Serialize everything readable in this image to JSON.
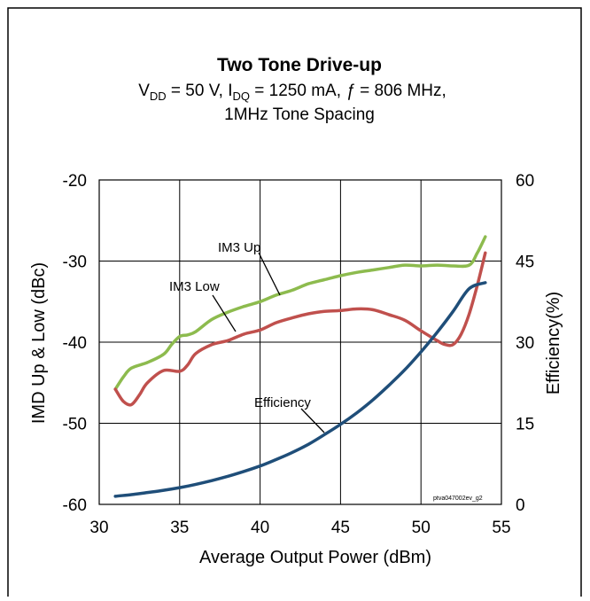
{
  "chart_data": {
    "type": "line",
    "title": "Two Tone  Drive-up",
    "subtitle_line1": {
      "v": "V",
      "v_sub": "DD",
      "mid1": " = 50 V, I",
      "i_sub": "DQ",
      "mid2": " = 1250 mA, ",
      "f": "ƒ",
      "end": " = 806 MHz,"
    },
    "subtitle_line2": "1MHz Tone Spacing",
    "xlabel": "Average Output Power (dBm)",
    "ylabel_left": "IMD  Up & Low (dBc)",
    "ylabel_right": "Efficiency(%)",
    "xlim": [
      30,
      55
    ],
    "ylim_left": [
      -60,
      -20
    ],
    "ylim_right": [
      0,
      60
    ],
    "x_ticks": [
      "30",
      "35",
      "40",
      "45",
      "50",
      "55"
    ],
    "y_ticks_left": [
      "-60",
      "-50",
      "-40",
      "-30",
      "-20"
    ],
    "y_ticks_right": [
      "0",
      "15",
      "30",
      "45",
      "60"
    ],
    "grid": true,
    "watermark": "ptva047002ev_g2",
    "colors": {
      "im3_up": "#8dbb4e",
      "im3_low": "#c0504d",
      "efficiency": "#1f4e79"
    },
    "series": [
      {
        "name": "IM3 Up",
        "axis": "left",
        "x": [
          31.0,
          31.5,
          32.0,
          33.0,
          34.0,
          34.5,
          35.0,
          35.5,
          36.0,
          37.0,
          38.0,
          39.0,
          40.0,
          41.0,
          42.0,
          43.0,
          44.0,
          45.0,
          46.0,
          47.0,
          48.0,
          49.0,
          50.0,
          51.0,
          52.0,
          53.0,
          53.5,
          54.0
        ],
        "values": [
          -45.8,
          -44.3,
          -43.2,
          -42.5,
          -41.5,
          -40.3,
          -39.3,
          -39.1,
          -38.7,
          -37.2,
          -36.3,
          -35.6,
          -35.0,
          -34.2,
          -33.6,
          -32.8,
          -32.3,
          -31.8,
          -31.4,
          -31.1,
          -30.8,
          -30.5,
          -30.6,
          -30.5,
          -30.6,
          -30.5,
          -29.0,
          -27.0
        ]
      },
      {
        "name": "IM3 Low",
        "axis": "left",
        "x": [
          31.0,
          31.5,
          32.0,
          32.5,
          33.0,
          34.0,
          35.0,
          35.5,
          36.0,
          37.0,
          38.0,
          39.0,
          40.0,
          41.0,
          42.0,
          43.0,
          44.0,
          45.0,
          46.0,
          47.0,
          48.0,
          49.0,
          50.0,
          51.0,
          51.5,
          52.0,
          52.5,
          53.0,
          53.5,
          54.0
        ],
        "values": [
          -45.8,
          -47.3,
          -47.7,
          -46.5,
          -45.0,
          -43.5,
          -43.6,
          -42.8,
          -41.4,
          -40.3,
          -39.8,
          -39.0,
          -38.5,
          -37.6,
          -37.0,
          -36.5,
          -36.2,
          -36.1,
          -35.9,
          -36.0,
          -36.6,
          -37.3,
          -38.6,
          -39.8,
          -40.3,
          -40.3,
          -39.0,
          -36.5,
          -33.0,
          -29.0
        ]
      },
      {
        "name": "Efficiency",
        "axis": "right",
        "x": [
          31,
          32,
          33,
          34,
          35,
          36,
          37,
          38,
          39,
          40,
          41,
          42,
          43,
          44,
          45,
          46,
          47,
          48,
          49,
          50,
          51,
          52,
          53,
          54
        ],
        "values": [
          1.5,
          1.8,
          2.2,
          2.6,
          3.1,
          3.7,
          4.4,
          5.2,
          6.1,
          7.1,
          8.3,
          9.6,
          11.1,
          12.9,
          14.8,
          16.9,
          19.3,
          22.0,
          24.9,
          28.2,
          31.8,
          35.7,
          39.9,
          41.0
        ]
      }
    ],
    "annotations": [
      "IM3 Up",
      "IM3 Low",
      "Efficiency"
    ]
  }
}
